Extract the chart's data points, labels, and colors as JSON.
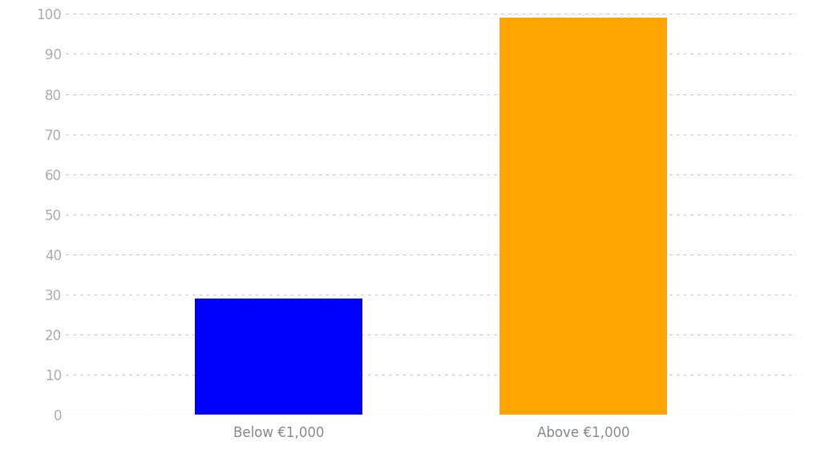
{
  "categories": [
    "Below €1,000",
    "Above €1,000"
  ],
  "values": [
    29,
    99
  ],
  "bar_colors": [
    "#0000FF",
    "#FFA500"
  ],
  "background_color": "#ffffff",
  "ylim": [
    0,
    100
  ],
  "yticks": [
    0,
    10,
    20,
    30,
    40,
    50,
    60,
    70,
    80,
    90,
    100
  ],
  "grid_color": "#cccccc",
  "tick_label_color": "#aaaaaa",
  "xlabel_color": "#888888",
  "bar_width": 0.55,
  "x_positions": [
    1,
    2
  ],
  "xlim": [
    0.3,
    2.7
  ]
}
